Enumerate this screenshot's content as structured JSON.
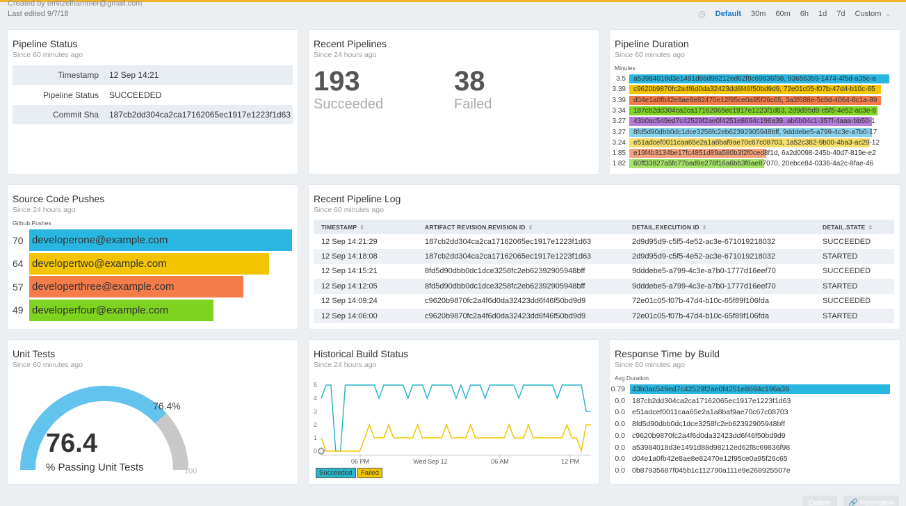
{
  "header": {
    "created_by": "Created by emitzelhammer@gmail.com",
    "last_edited": "Last edited 9/7/18",
    "time_options": [
      "Default",
      "30m",
      "60m",
      "6h",
      "1d",
      "7d",
      "Custom"
    ],
    "active_time": "Default"
  },
  "pipeline_status": {
    "title": "Pipeline Status",
    "subtitle": "Since 60 minutes ago",
    "rows": [
      {
        "key": "Timestamp",
        "value": "12 Sep 14:21"
      },
      {
        "key": "Pipeline Status",
        "value": "SUCCEEDED"
      },
      {
        "key": "Commit Sha",
        "value": "187cb2dd304ca2ca17162065ec1917e1223f1d63"
      }
    ]
  },
  "recent_pipelines": {
    "title": "Recent Pipelines",
    "subtitle": "Since 24 hours ago",
    "succeeded_count": "193",
    "succeeded_label": "Succeeded",
    "failed_count": "38",
    "failed_label": "Failed"
  },
  "pipeline_duration": {
    "title": "Pipeline Duration",
    "subtitle": "Since 60 minutes ago",
    "axis_label": "Minutes",
    "rows": [
      {
        "value": "3.5",
        "fraction": 1.0,
        "color": "#29b6e0",
        "text": "a53984018d3e1491d88d98212ed62f8c69836f98, 93656359-1474-4f5d-a35c-a"
      },
      {
        "value": "3.39",
        "fraction": 0.968,
        "color": "#f2c500",
        "text": "c9620b9870fc2a4f6d0da32423dd6f46f50bd9d9, 72e01c05-f07b-47d4-b10c-65"
      },
      {
        "value": "3.39",
        "fraction": 0.968,
        "color": "#f47b4a",
        "text": "d04e1a0fb42e8ae8e82470e12f95ce0a95f26c65, 3a3f688e-5c8d-4064-8c1a-89"
      },
      {
        "value": "3.34",
        "fraction": 0.954,
        "color": "#7ed321",
        "text": "187cb2dd304ca2ca17162065ec1917e1223f1d63, 2d9d95d9-c5f5-4e52-ac3e-6"
      },
      {
        "value": "3.27",
        "fraction": 0.934,
        "color": "#b57bd9",
        "text": "43b0ac549ed7c42529f2ae0f4251e8694c196a39, ab6b04c1-357f-4aaa-bb50-1"
      },
      {
        "value": "3.27",
        "fraction": 0.934,
        "color": "#87d3ee",
        "text": "8fd5d90dbb0dc1dce3258fc2eb62392905948bff, 9dddebe5-a799-4c3e-a7b0-17"
      },
      {
        "value": "3.24",
        "fraction": 0.925,
        "color": "#f6de6a",
        "text": "e51adcef0011caa65e2a1a8baf9ae70c67c08703, 1a52c382-9b00-4ba3-ac29-12"
      },
      {
        "value": "1.85",
        "fraction": 0.528,
        "color": "#f4a27c",
        "text": "e19f4b3134be17fc4851d89a580b3f2f0ced8f1d, 6a2d0098-245b-40d7-819e-e2"
      },
      {
        "value": "1.82",
        "fraction": 0.52,
        "color": "#a6e36a",
        "text": "60ff33827a5fc77bad9e278f16a6bb3f6ae87070, 20ebce84-0336-4a2c-8fae-46"
      }
    ]
  },
  "source_pushes": {
    "title": "Source Code Pushes",
    "subtitle": "Since 24 hours ago",
    "axis_label": "Github:Pushes",
    "rows": [
      {
        "value": "70",
        "fraction": 1.0,
        "color": "#29b6e0",
        "label": "developerone@example.com"
      },
      {
        "value": "64",
        "fraction": 0.914,
        "color": "#f2c500",
        "label": "developertwo@example.com"
      },
      {
        "value": "57",
        "fraction": 0.814,
        "color": "#f47b4a",
        "label": "developerthree@example.com"
      },
      {
        "value": "49",
        "fraction": 0.7,
        "color": "#7ed321",
        "label": "developerfour@example.com"
      }
    ]
  },
  "pipeline_log": {
    "title": "Recent Pipeline Log",
    "subtitle": "Since 60 minutes ago",
    "columns": [
      "TIMESTAMP",
      "ARTIFACT REVISION.REVISION ID",
      "DETAIL.EXECUTION ID",
      "DETAIL.STATE"
    ],
    "rows": [
      [
        "12 Sep 14:21:29",
        "187cb2dd304ca2ca17162065ec1917e1223f1d63",
        "2d9d95d9-c5f5-4e52-ac3e-671019218032",
        "SUCCEEDED"
      ],
      [
        "12 Sep 14:18:08",
        "187cb2dd304ca2ca17162065ec1917e1223f1d63",
        "2d9d95d9-c5f5-4e52-ac3e-671019218032",
        "STARTED"
      ],
      [
        "12 Sep 14:15:21",
        "8fd5d90dbb0dc1dce3258fc2eb62392905948bff",
        "9dddebe5-a799-4c3e-a7b0-1777d16eef70",
        "SUCCEEDED"
      ],
      [
        "12 Sep 14:12:05",
        "8fd5d90dbb0dc1dce3258fc2eb62392905948bff",
        "9dddebe5-a799-4c3e-a7b0-1777d16eef70",
        "STARTED"
      ],
      [
        "12 Sep 14:09:24",
        "c9620b9870fc2a4f6d0da32423dd6f46f50bd9d9",
        "72e01c05-f07b-47d4-b10c-65f89f106fda",
        "SUCCEEDED"
      ],
      [
        "12 Sep 14:06:00",
        "c9620b9870fc2a4f6d0da32423dd6f46f50bd9d9",
        "72e01c05-f07b-47d4-b10c-65f89f106fda",
        "STARTED"
      ]
    ]
  },
  "unit_tests": {
    "title": "Unit Tests",
    "subtitle": "Since 60 minutes ago",
    "value": "76.4",
    "value_percent": "76.4%",
    "label": "% Passing Unit Tests",
    "max_label": "100",
    "fraction": 0.764
  },
  "historical_build": {
    "title": "Historical Build Status",
    "subtitle": "Since 24 hours ago",
    "legend": [
      {
        "name": "Succeeded",
        "color": "#29b6c9"
      },
      {
        "name": "Failed",
        "color": "#f2c500"
      }
    ]
  },
  "chart_data": {
    "type": "line",
    "x_ticks": [
      "06 PM",
      "Wed Sep 12",
      "06 AM",
      "12 PM"
    ],
    "y_ticks": [
      "0",
      "1",
      "2",
      "3",
      "4",
      "5"
    ],
    "ylim": [
      0,
      5
    ],
    "series": [
      {
        "name": "Succeeded",
        "values": [
          4,
          5,
          5,
          0,
          0,
          5,
          5,
          5,
          5,
          5,
          5,
          5,
          4,
          5,
          5,
          5,
          5,
          5,
          4,
          5,
          5,
          5,
          4,
          5,
          5,
          5,
          5,
          5,
          4,
          5,
          4,
          5,
          5,
          5,
          4,
          5,
          5,
          5,
          5,
          5,
          5,
          4,
          5,
          5,
          5,
          5,
          5,
          5,
          5,
          4,
          5,
          5,
          5,
          5,
          5,
          3,
          3
        ]
      },
      {
        "name": "Failed",
        "values": [
          1,
          0,
          0,
          0,
          0,
          0,
          0,
          0,
          0,
          1,
          2,
          1,
          1,
          1,
          2,
          1,
          1,
          1,
          1,
          1,
          2,
          1,
          1,
          1,
          1,
          1,
          2,
          1,
          1,
          1,
          1,
          2,
          1,
          1,
          1,
          1,
          1,
          1,
          1,
          2,
          1,
          1,
          1,
          2,
          1,
          1,
          1,
          1,
          1,
          1,
          1,
          2,
          1,
          1,
          0,
          2,
          2
        ]
      }
    ]
  },
  "response_time": {
    "title": "Response Time by Build",
    "subtitle": "Since 60 minutes ago",
    "axis_label": "Avg Duration",
    "rows": [
      {
        "value": "0.79",
        "highlight": true,
        "text": "43b0ac549ed7c42529f2ae0f4251e8694c196a39"
      },
      {
        "value": "0.0",
        "highlight": false,
        "text": "187cb2dd304ca2ca17162065ec1917e1223f1d63"
      },
      {
        "value": "0.0",
        "highlight": false,
        "text": "e51adcef0011caa65e2a1a8baf9ae70c67c08703"
      },
      {
        "value": "0.0",
        "highlight": false,
        "text": "8fd5d90dbb0dc1dce3258fc2eb62392905948bff"
      },
      {
        "value": "0.0",
        "highlight": false,
        "text": "c9620b9870fc2a4f6d0da32423dd6f46f50bd9d9"
      },
      {
        "value": "0.0",
        "highlight": false,
        "text": "a53984018d3e1491d88d98212ed62f8c69836f98"
      },
      {
        "value": "0.0",
        "highlight": false,
        "text": "d04e1a0fb42e8ae8e82470e12f95ce0a95f26c65"
      },
      {
        "value": "0.0",
        "highlight": false,
        "text": "0b87935687f045b1c112790a111e9e268925507e"
      }
    ]
  },
  "footer": {
    "delete_label": "Delete",
    "permalink_label": "Permalink"
  }
}
